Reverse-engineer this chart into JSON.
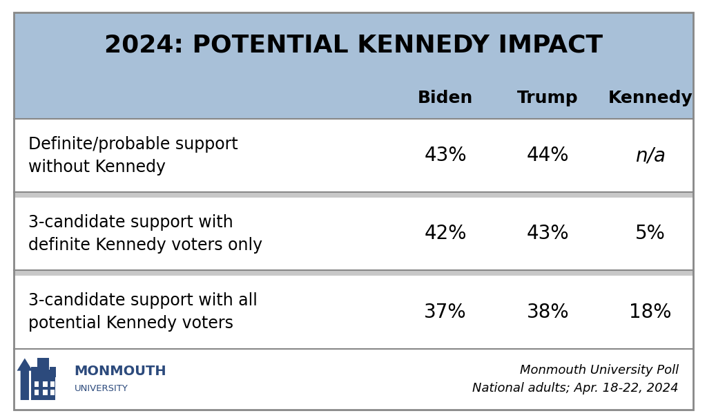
{
  "title": "2024: POTENTIAL KENNEDY IMPACT",
  "title_bg_color": "#a8c0d8",
  "header_bg_color": "#a8c0d8",
  "columns": [
    "Biden",
    "Trump",
    "Kennedy"
  ],
  "rows": [
    {
      "label": "Definite/probable support\nwithout Kennedy",
      "values": [
        "43%",
        "44%",
        "n/a"
      ],
      "kennedy_italic": true
    },
    {
      "label": "3-candidate support with\ndefinite Kennedy voters only",
      "values": [
        "42%",
        "43%",
        "5%"
      ],
      "kennedy_italic": false
    },
    {
      "label": "3-candidate support with all\npotential Kennedy voters",
      "values": [
        "37%",
        "38%",
        "18%"
      ],
      "kennedy_italic": false
    }
  ],
  "footer_note": "Monmouth University Poll\nNational adults; Apr. 18-22, 2024",
  "border_color": "#888888",
  "text_color": "#000000",
  "title_font_size": 26,
  "header_font_size": 18,
  "row_label_font_size": 17,
  "row_value_font_size": 20,
  "footer_font_size": 13,
  "monmouth_color": "#2c4a7c",
  "separator_color": "#c8c8c8"
}
